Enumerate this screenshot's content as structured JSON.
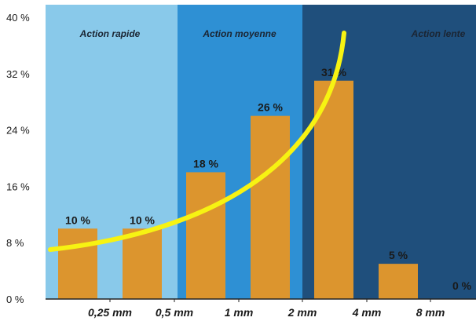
{
  "chart_data": {
    "type": "bar",
    "title": "",
    "xlabel": "",
    "ylabel": "",
    "ylim": [
      0,
      40
    ],
    "y_ticks": [
      "0 %",
      "8 %",
      "16 %",
      "24 %",
      "32 %",
      "40 %"
    ],
    "y_tick_values": [
      0,
      8,
      16,
      24,
      32,
      40
    ],
    "x_tick_labels": [
      "0,25 mm",
      "0,5 mm",
      "1 mm",
      "2 mm",
      "4 mm",
      "8 mm"
    ],
    "values": [
      10,
      10,
      18,
      26,
      31,
      5,
      0
    ],
    "data_labels": [
      "10 %",
      "10 %",
      "18 %",
      "26 %",
      "31 %",
      "5 %",
      "0 %"
    ],
    "zones": [
      {
        "label": "Action rapide",
        "color": "#89c9ea"
      },
      {
        "label": "Action moyenne",
        "color": "#2e90d4"
      },
      {
        "label": "Action lente",
        "color": "#1f4f7c"
      }
    ],
    "bar_color": "#dc952e",
    "curve_color": "#f7f312",
    "grid": false,
    "legend": "none"
  }
}
